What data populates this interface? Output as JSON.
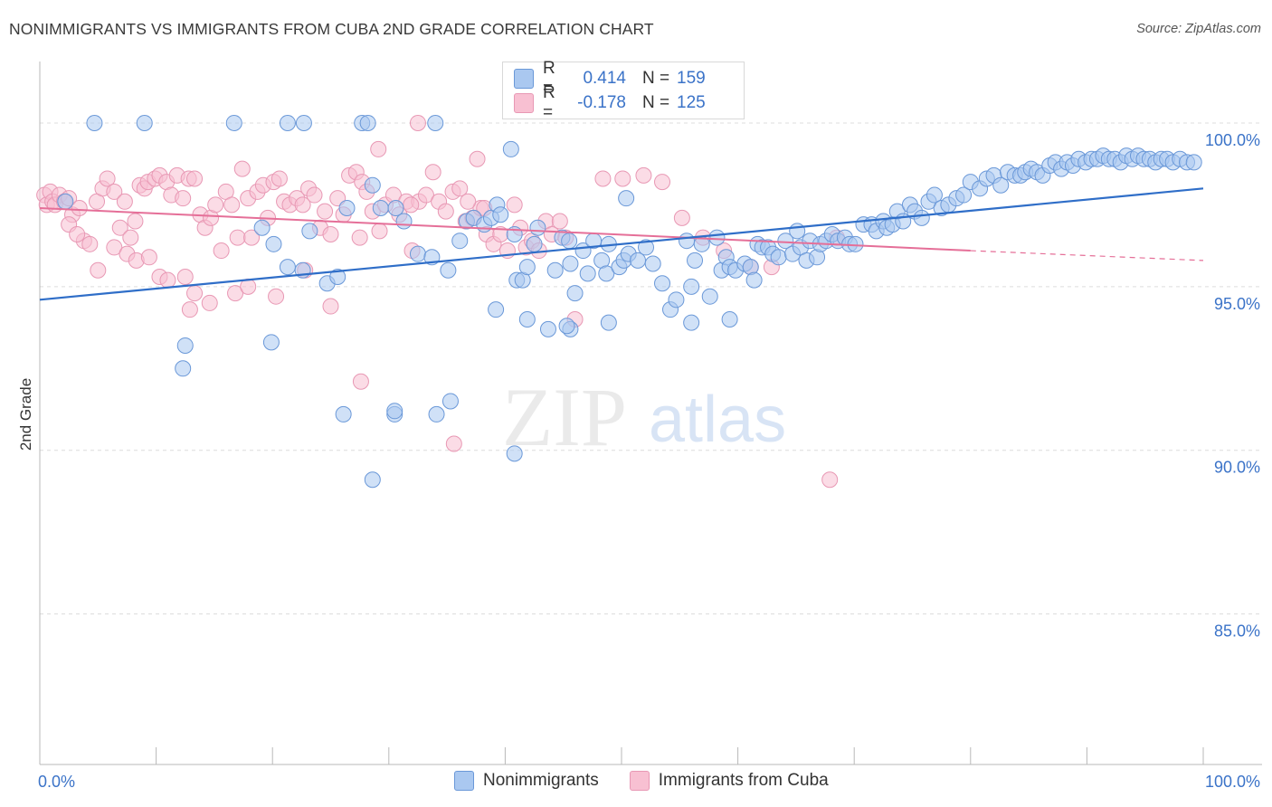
{
  "title": "NONIMMIGRANTS VS IMMIGRANTS FROM CUBA 2ND GRADE CORRELATION CHART",
  "source": "Source: ZipAtlas.com",
  "watermark": {
    "zip": "ZIP",
    "atlas": "atlas"
  },
  "legend": {
    "r_label": "R =",
    "n_label": "N =",
    "rows": [
      {
        "swatch_fill": "#aac8f0",
        "swatch_stroke": "#6a98d8",
        "r": "0.414",
        "n": "159"
      },
      {
        "swatch_fill": "#f8c0d2",
        "swatch_stroke": "#e898b4",
        "r": "-0.178",
        "n": "125"
      }
    ]
  },
  "bottom_legend": [
    "Nonimmigrants",
    "Immigrants from Cuba"
  ],
  "chart_data": {
    "type": "scatter",
    "xlabel": "",
    "ylabel": "2nd Grade",
    "xlim": [
      0,
      100
    ],
    "ylim": [
      80.4,
      102.1
    ],
    "x_tick_labels": [
      {
        "value": 0,
        "label": "0.0%"
      },
      {
        "value": 100,
        "label": "100.0%"
      }
    ],
    "y_ticks": [
      {
        "value": 85,
        "label": "85.0%"
      },
      {
        "value": 90,
        "label": "90.0%"
      },
      {
        "value": 95,
        "label": "95.0%"
      },
      {
        "value": 100,
        "label": "100.0%"
      }
    ],
    "colors": {
      "blue_fill": "#aac8f0",
      "blue_stroke": "#6a98d8",
      "blue_line": "#2f6ec8",
      "pink_fill": "#f8c0d2",
      "pink_stroke": "#e898b4",
      "pink_line": "#e56f98",
      "tick_text": "#3b73c8"
    },
    "series": [
      {
        "name": "Nonimmigrants",
        "trend": {
          "x": [
            0,
            100
          ],
          "y": [
            94.6,
            98.0
          ]
        },
        "points": [
          [
            4.7,
            100
          ],
          [
            9,
            100
          ],
          [
            16.7,
            100
          ],
          [
            21.3,
            100
          ],
          [
            22.7,
            100
          ],
          [
            27.7,
            100
          ],
          [
            28.2,
            100
          ],
          [
            34,
            100
          ],
          [
            40.5,
            99.2
          ],
          [
            2.2,
            97.6
          ],
          [
            19.1,
            96.8
          ],
          [
            20.1,
            96.3
          ],
          [
            21.3,
            95.6
          ],
          [
            22.6,
            95.5
          ],
          [
            23.2,
            96.7
          ],
          [
            24.7,
            95.1
          ],
          [
            25.6,
            95.3
          ],
          [
            26.4,
            97.4
          ],
          [
            28.6,
            98.1
          ],
          [
            29.3,
            97.4
          ],
          [
            30.6,
            97.4
          ],
          [
            31.3,
            97.0
          ],
          [
            32.5,
            96.0
          ],
          [
            33.7,
            95.9
          ],
          [
            35.1,
            95.5
          ],
          [
            36.1,
            96.4
          ],
          [
            36.7,
            97.0
          ],
          [
            37.3,
            97.1
          ],
          [
            38.2,
            96.9
          ],
          [
            38.8,
            97.1
          ],
          [
            39.3,
            97.5
          ],
          [
            39.6,
            97.2
          ],
          [
            40.8,
            96.6
          ],
          [
            41.0,
            95.2
          ],
          [
            41.5,
            95.2
          ],
          [
            41.9,
            95.6
          ],
          [
            42.5,
            96.3
          ],
          [
            42.8,
            96.8
          ],
          [
            44.3,
            95.5
          ],
          [
            44.9,
            96.5
          ],
          [
            45.5,
            96.4
          ],
          [
            45.6,
            95.7
          ],
          [
            46.0,
            94.8
          ],
          [
            46.7,
            96.1
          ],
          [
            47.1,
            95.4
          ],
          [
            47.6,
            96.4
          ],
          [
            48.3,
            95.8
          ],
          [
            48.7,
            95.4
          ],
          [
            48.9,
            96.3
          ],
          [
            49.8,
            95.6
          ],
          [
            50.2,
            95.8
          ],
          [
            50.4,
            97.7
          ],
          [
            50.6,
            96.0
          ],
          [
            51.4,
            95.8
          ],
          [
            52.1,
            96.2
          ],
          [
            52.7,
            95.7
          ],
          [
            53.5,
            95.1
          ],
          [
            54.2,
            94.3
          ],
          [
            54.7,
            94.6
          ],
          [
            55.6,
            96.4
          ],
          [
            56.0,
            95.0
          ],
          [
            56.3,
            95.8
          ],
          [
            56.9,
            96.3
          ],
          [
            57.6,
            94.7
          ],
          [
            58.2,
            96.5
          ],
          [
            58.6,
            95.5
          ],
          [
            59.0,
            95.9
          ],
          [
            59.3,
            95.6
          ],
          [
            59.8,
            95.5
          ],
          [
            60.6,
            95.7
          ],
          [
            61.1,
            95.6
          ],
          [
            61.4,
            95.2
          ],
          [
            61.7,
            96.3
          ],
          [
            62.1,
            96.2
          ],
          [
            62.6,
            96.2
          ],
          [
            63.0,
            96.0
          ],
          [
            63.5,
            95.9
          ],
          [
            64.1,
            96.4
          ],
          [
            64.7,
            96.0
          ],
          [
            65.1,
            96.7
          ],
          [
            65.4,
            96.2
          ],
          [
            65.9,
            95.8
          ],
          [
            66.2,
            96.4
          ],
          [
            66.8,
            95.9
          ],
          [
            67.1,
            96.3
          ],
          [
            67.6,
            96.4
          ],
          [
            68.1,
            96.6
          ],
          [
            68.6,
            96.4
          ],
          [
            69.2,
            96.5
          ],
          [
            69.6,
            96.3
          ],
          [
            70.1,
            96.3
          ],
          [
            70.8,
            96.9
          ],
          [
            71.5,
            96.9
          ],
          [
            71.9,
            96.7
          ],
          [
            72.5,
            97.0
          ],
          [
            72.8,
            96.8
          ],
          [
            73.3,
            96.9
          ],
          [
            73.7,
            97.3
          ],
          [
            74.2,
            97.0
          ],
          [
            74.8,
            97.5
          ],
          [
            75.2,
            97.3
          ],
          [
            75.8,
            97.1
          ],
          [
            76.4,
            97.6
          ],
          [
            76.9,
            97.8
          ],
          [
            77.5,
            97.4
          ],
          [
            78.1,
            97.5
          ],
          [
            78.8,
            97.7
          ],
          [
            79.4,
            97.8
          ],
          [
            80.0,
            98.2
          ],
          [
            80.8,
            98.0
          ],
          [
            81.4,
            98.3
          ],
          [
            82.0,
            98.4
          ],
          [
            82.6,
            98.1
          ],
          [
            83.2,
            98.5
          ],
          [
            83.8,
            98.4
          ],
          [
            84.3,
            98.4
          ],
          [
            84.7,
            98.5
          ],
          [
            85.2,
            98.6
          ],
          [
            85.7,
            98.5
          ],
          [
            86.2,
            98.4
          ],
          [
            86.8,
            98.7
          ],
          [
            87.3,
            98.8
          ],
          [
            87.8,
            98.6
          ],
          [
            88.3,
            98.8
          ],
          [
            88.8,
            98.7
          ],
          [
            89.3,
            98.9
          ],
          [
            89.9,
            98.8
          ],
          [
            90.4,
            98.9
          ],
          [
            90.9,
            98.9
          ],
          [
            91.4,
            99.0
          ],
          [
            91.9,
            98.9
          ],
          [
            92.4,
            98.9
          ],
          [
            92.9,
            98.8
          ],
          [
            93.4,
            99.0
          ],
          [
            93.9,
            98.9
          ],
          [
            94.4,
            99.0
          ],
          [
            94.9,
            98.9
          ],
          [
            95.4,
            98.9
          ],
          [
            95.9,
            98.8
          ],
          [
            96.4,
            98.9
          ],
          [
            96.9,
            98.9
          ],
          [
            97.4,
            98.8
          ],
          [
            98.0,
            98.9
          ],
          [
            98.6,
            98.8
          ],
          [
            99.2,
            98.8
          ],
          [
            12.5,
            93.2
          ],
          [
            19.9,
            93.3
          ],
          [
            26.1,
            91.1
          ],
          [
            30.5,
            91.1
          ],
          [
            34.1,
            91.1
          ],
          [
            35.3,
            91.5
          ],
          [
            39.2,
            94.3
          ],
          [
            41.9,
            94.0
          ],
          [
            43.7,
            93.7
          ],
          [
            45.6,
            93.7
          ],
          [
            48.9,
            93.9
          ],
          [
            56.0,
            93.9
          ],
          [
            59.3,
            94.0
          ],
          [
            28.6,
            89.1
          ],
          [
            40.8,
            89.9
          ],
          [
            30.5,
            91.2
          ],
          [
            45.3,
            93.8
          ],
          [
            12.3,
            92.5
          ]
        ]
      },
      {
        "name": "Immigrants from Cuba",
        "trend": {
          "x": [
            0,
            80
          ],
          "y": [
            97.4,
            96.1
          ]
        },
        "dash": {
          "x": [
            80,
            100
          ],
          "y": [
            96.1,
            95.8
          ]
        },
        "points": [
          [
            0.4,
            97.8
          ],
          [
            0.6,
            97.5
          ],
          [
            0.9,
            97.9
          ],
          [
            1.1,
            97.6
          ],
          [
            1.3,
            97.5
          ],
          [
            1.7,
            97.8
          ],
          [
            2.1,
            97.6
          ],
          [
            2.5,
            97.7
          ],
          [
            2.8,
            97.2
          ],
          [
            3.4,
            97.4
          ],
          [
            3.8,
            96.4
          ],
          [
            4.3,
            96.3
          ],
          [
            4.9,
            97.6
          ],
          [
            5.4,
            98.0
          ],
          [
            5.8,
            98.3
          ],
          [
            6.4,
            97.9
          ],
          [
            6.9,
            96.8
          ],
          [
            7.3,
            97.6
          ],
          [
            7.8,
            96.5
          ],
          [
            8.2,
            97.0
          ],
          [
            8.6,
            98.1
          ],
          [
            9.0,
            98.0
          ],
          [
            9.3,
            98.2
          ],
          [
            9.9,
            98.3
          ],
          [
            10.3,
            98.4
          ],
          [
            10.9,
            98.2
          ],
          [
            11.3,
            97.8
          ],
          [
            11.8,
            98.4
          ],
          [
            12.3,
            97.7
          ],
          [
            12.8,
            98.3
          ],
          [
            13.3,
            98.3
          ],
          [
            13.8,
            97.2
          ],
          [
            14.2,
            96.8
          ],
          [
            14.7,
            97.1
          ],
          [
            15.1,
            97.5
          ],
          [
            15.6,
            96.1
          ],
          [
            16.0,
            97.9
          ],
          [
            16.5,
            97.5
          ],
          [
            17.0,
            96.5
          ],
          [
            17.4,
            98.6
          ],
          [
            17.9,
            97.7
          ],
          [
            18.2,
            96.5
          ],
          [
            18.7,
            97.9
          ],
          [
            19.2,
            98.1
          ],
          [
            19.6,
            97.1
          ],
          [
            20.1,
            98.2
          ],
          [
            20.6,
            98.3
          ],
          [
            21.0,
            97.6
          ],
          [
            21.5,
            97.5
          ],
          [
            22.1,
            97.7
          ],
          [
            22.6,
            97.5
          ],
          [
            23.1,
            98.0
          ],
          [
            23.6,
            97.8
          ],
          [
            24.1,
            96.8
          ],
          [
            24.5,
            97.3
          ],
          [
            25.0,
            96.6
          ],
          [
            25.6,
            97.7
          ],
          [
            26.1,
            97.2
          ],
          [
            26.6,
            98.4
          ],
          [
            27.2,
            98.5
          ],
          [
            27.7,
            98.2
          ],
          [
            28.1,
            97.9
          ],
          [
            28.6,
            97.3
          ],
          [
            29.2,
            96.7
          ],
          [
            29.7,
            97.5
          ],
          [
            30.4,
            97.8
          ],
          [
            30.9,
            97.2
          ],
          [
            31.5,
            97.6
          ],
          [
            32.0,
            96.1
          ],
          [
            32.6,
            97.6
          ],
          [
            33.2,
            97.8
          ],
          [
            33.8,
            98.5
          ],
          [
            34.3,
            97.6
          ],
          [
            34.9,
            97.3
          ],
          [
            35.5,
            97.9
          ],
          [
            36.1,
            98.0
          ],
          [
            36.6,
            97.0
          ],
          [
            37.2,
            97.1
          ],
          [
            37.9,
            97.4
          ],
          [
            38.4,
            96.6
          ],
          [
            39.0,
            96.3
          ],
          [
            39.6,
            96.6
          ],
          [
            40.2,
            96.1
          ],
          [
            40.8,
            97.5
          ],
          [
            41.3,
            96.8
          ],
          [
            41.8,
            96.2
          ],
          [
            42.3,
            96.4
          ],
          [
            42.9,
            96.1
          ],
          [
            43.5,
            97.0
          ],
          [
            44.0,
            96.6
          ],
          [
            2.5,
            96.9
          ],
          [
            3.2,
            96.6
          ],
          [
            5.0,
            95.5
          ],
          [
            6.4,
            96.2
          ],
          [
            7.5,
            96.0
          ],
          [
            8.3,
            95.8
          ],
          [
            9.4,
            95.9
          ],
          [
            10.3,
            95.3
          ],
          [
            11.0,
            95.2
          ],
          [
            12.5,
            95.3
          ],
          [
            12.9,
            94.3
          ],
          [
            13.3,
            94.8
          ],
          [
            14.6,
            94.5
          ],
          [
            16.8,
            94.8
          ],
          [
            17.9,
            95.0
          ],
          [
            20.3,
            94.7
          ],
          [
            22.8,
            95.5
          ],
          [
            25.0,
            94.4
          ],
          [
            27.5,
            96.5
          ],
          [
            29.1,
            99.2
          ],
          [
            32.5,
            100
          ],
          [
            37.6,
            98.9
          ],
          [
            31.9,
            97.5
          ],
          [
            36.8,
            97.6
          ],
          [
            38.2,
            97.4
          ],
          [
            48.4,
            98.3
          ],
          [
            44.7,
            97.0
          ],
          [
            45.2,
            96.5
          ],
          [
            50.1,
            98.3
          ],
          [
            51.9,
            98.4
          ],
          [
            53.5,
            98.2
          ],
          [
            55.2,
            97.1
          ],
          [
            57.0,
            96.5
          ],
          [
            58.8,
            96.1
          ],
          [
            61.1,
            95.6
          ],
          [
            62.9,
            95.6
          ],
          [
            68.5,
            96.5
          ],
          [
            27.6,
            92.1
          ],
          [
            35.6,
            90.2
          ],
          [
            67.9,
            89.1
          ],
          [
            46.0,
            94.0
          ]
        ]
      }
    ]
  }
}
